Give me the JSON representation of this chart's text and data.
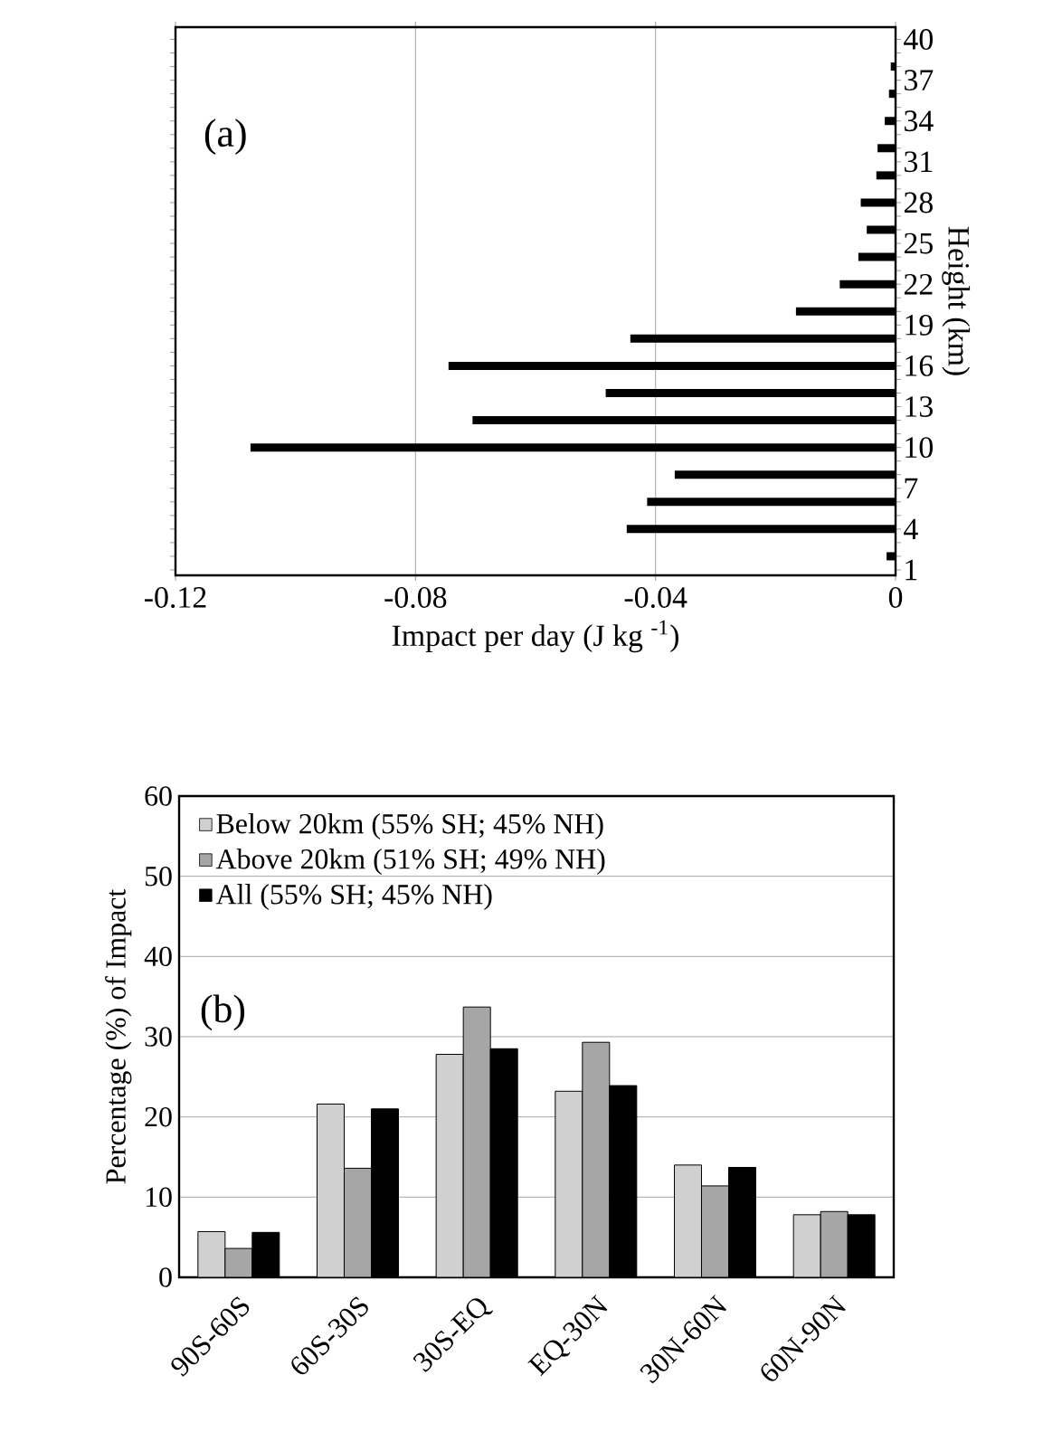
{
  "chart_data": [
    {
      "type": "bar",
      "orientation": "horizontal",
      "xlabel": "Impact per day (J kg $^{-1}$)",
      "ylabel": "Height (km)",
      "annotations": [
        "(a)"
      ],
      "categories": [
        "40",
        null,
        null,
        "37",
        null,
        null,
        "34",
        null,
        null,
        "31",
        null,
        null,
        "28",
        null,
        null,
        "25",
        null,
        null,
        "22",
        null,
        null,
        "19",
        null,
        null,
        "16",
        null,
        null,
        "13",
        null,
        null,
        "10",
        null,
        null,
        "7",
        null,
        null,
        "4",
        null,
        null,
        "1"
      ],
      "values": [
        null,
        null,
        -0.0008,
        null,
        -0.0011,
        null,
        -0.0018,
        null,
        -0.003,
        null,
        -0.0032,
        null,
        -0.0058,
        null,
        -0.0048,
        null,
        -0.0062,
        null,
        -0.0093,
        null,
        -0.0166,
        null,
        -0.0442,
        null,
        -0.0745,
        null,
        -0.0483,
        null,
        -0.0705,
        null,
        -0.1075,
        null,
        -0.0368,
        null,
        -0.0414,
        null,
        -0.0448,
        null,
        -0.0015,
        null
      ],
      "color": "#000000",
      "xlim": [
        -0.12,
        0
      ],
      "xticks": [
        -0.12,
        -0.08,
        -0.04,
        0
      ],
      "grid": "x"
    },
    {
      "type": "bar",
      "ylabel": "Percentage (%) of Impact",
      "annotations": [
        "(b)"
      ],
      "categories": [
        "90S-60S",
        "60S-30S",
        "30S-EQ",
        "EQ-30N",
        "30N-60N",
        "60N-90N"
      ],
      "series": [
        {
          "name": "Below 20km (55% SH; 45% NH)",
          "color": "#d0d0d0",
          "values": [
            5.7,
            21.6,
            27.8,
            23.2,
            14.0,
            7.8
          ]
        },
        {
          "name": "Above 20km (51% SH; 49% NH)",
          "color": "#a6a6a6",
          "values": [
            3.6,
            13.6,
            33.7,
            29.3,
            11.4,
            8.2
          ]
        },
        {
          "name": "All (55% SH; 45% NH)",
          "color": "#000000",
          "values": [
            5.6,
            21.0,
            28.5,
            23.9,
            13.7,
            7.8
          ]
        }
      ],
      "ylim": [
        0,
        60
      ],
      "yticks": [
        0,
        10,
        20,
        30,
        40,
        50,
        60
      ],
      "grid": "y",
      "legend": "top left"
    }
  ]
}
